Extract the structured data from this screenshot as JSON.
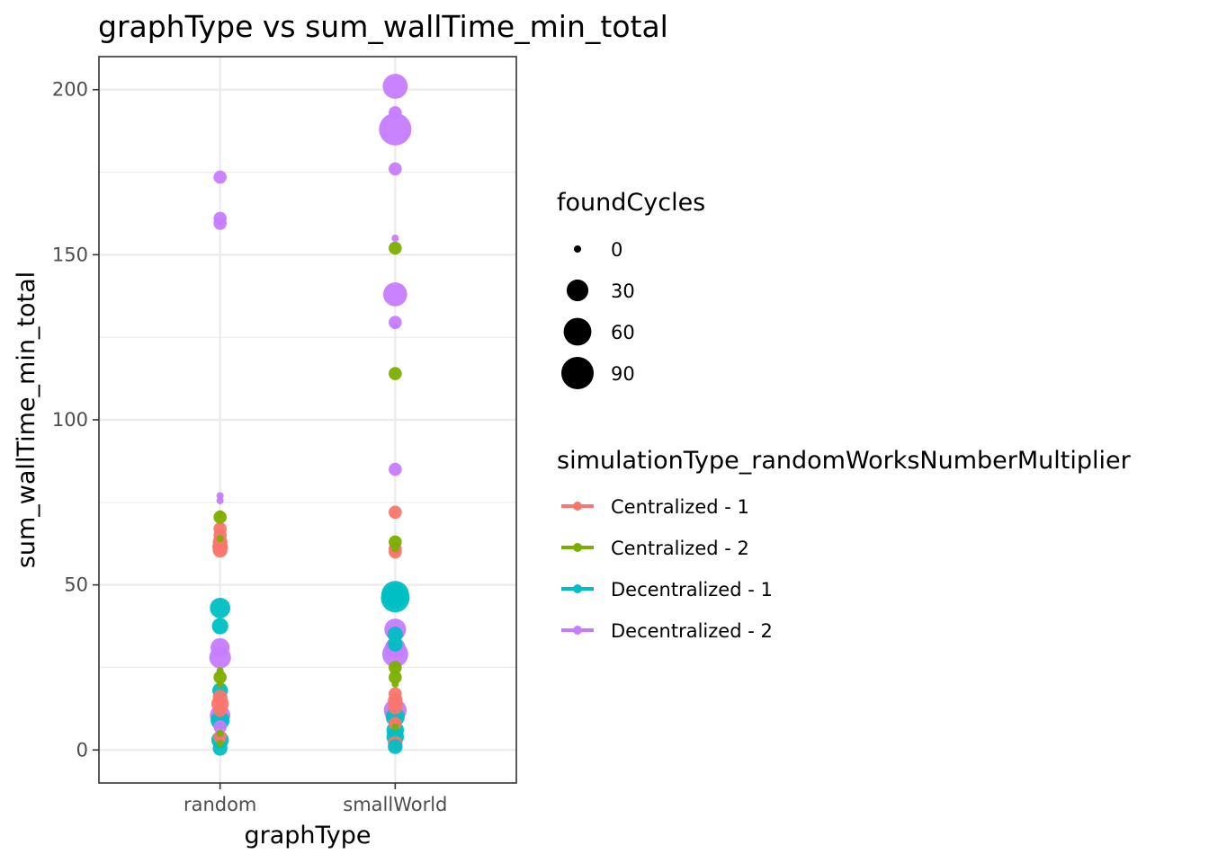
{
  "chart_data": {
    "type": "scatter",
    "title": "graphType  vs  sum_wallTime_min_total",
    "xlabel": "graphType",
    "ylabel": "sum_wallTime_min_total",
    "categories": [
      "random",
      "smallWorld"
    ],
    "ylim": [
      -10,
      210
    ],
    "yticks": [
      0,
      50,
      100,
      150,
      200
    ],
    "grid": true,
    "legend_position": "right",
    "size_legend": {
      "title": "foundCycles",
      "values": [
        0,
        30,
        60,
        90
      ],
      "labels": [
        "0",
        "30",
        "60",
        "90"
      ]
    },
    "color_legend": {
      "title": "simulationType_randomWorksNumberMultiplier"
    },
    "series": [
      {
        "name": "Centralized - 1",
        "color": "#F8766D",
        "points": [
          {
            "x": "random",
            "y": 67,
            "size": 5
          },
          {
            "x": "random",
            "y": 65,
            "size": 5
          },
          {
            "x": "random",
            "y": 63,
            "size": 8
          },
          {
            "x": "random",
            "y": 61.5,
            "size": 10
          },
          {
            "x": "random",
            "y": 60.5,
            "size": 8
          },
          {
            "x": "random",
            "y": 16,
            "size": 8
          },
          {
            "x": "random",
            "y": 14,
            "size": 15
          },
          {
            "x": "random",
            "y": 12,
            "size": 5
          },
          {
            "x": "random",
            "y": 4,
            "size": 5
          },
          {
            "x": "smallWorld",
            "y": 72,
            "size": 5
          },
          {
            "x": "smallWorld",
            "y": 61,
            "size": 5
          },
          {
            "x": "smallWorld",
            "y": 60,
            "size": 5
          },
          {
            "x": "smallWorld",
            "y": 17,
            "size": 5
          },
          {
            "x": "smallWorld",
            "y": 15,
            "size": 8
          },
          {
            "x": "smallWorld",
            "y": 13,
            "size": 8
          },
          {
            "x": "smallWorld",
            "y": 8,
            "size": 5
          },
          {
            "x": "smallWorld",
            "y": 2,
            "size": 8
          }
        ]
      },
      {
        "name": "Centralized - 2",
        "color": "#7CAE00",
        "points": [
          {
            "x": "random",
            "y": 71.5,
            "size": 0
          },
          {
            "x": "random",
            "y": 70.5,
            "size": 5
          },
          {
            "x": "random",
            "y": 64,
            "size": 0
          },
          {
            "x": "random",
            "y": 24,
            "size": 0
          },
          {
            "x": "random",
            "y": 22,
            "size": 5
          },
          {
            "x": "random",
            "y": 20,
            "size": 0
          },
          {
            "x": "random",
            "y": 5,
            "size": 0
          },
          {
            "x": "random",
            "y": 2,
            "size": 0
          },
          {
            "x": "smallWorld",
            "y": 152,
            "size": 5
          },
          {
            "x": "smallWorld",
            "y": 114,
            "size": 5
          },
          {
            "x": "smallWorld",
            "y": 63,
            "size": 5
          },
          {
            "x": "smallWorld",
            "y": 61,
            "size": 0
          },
          {
            "x": "smallWorld",
            "y": 25,
            "size": 5
          },
          {
            "x": "smallWorld",
            "y": 22,
            "size": 5
          },
          {
            "x": "smallWorld",
            "y": 20,
            "size": 0
          },
          {
            "x": "smallWorld",
            "y": 7,
            "size": 0
          }
        ]
      },
      {
        "name": "Decentralized - 1",
        "color": "#00BFC4",
        "points": [
          {
            "x": "random",
            "y": 43,
            "size": 25
          },
          {
            "x": "random",
            "y": 37.5,
            "size": 12
          },
          {
            "x": "random",
            "y": 18,
            "size": 10
          },
          {
            "x": "random",
            "y": 9,
            "size": 20
          },
          {
            "x": "random",
            "y": 3,
            "size": 15
          },
          {
            "x": "random",
            "y": 0.5,
            "size": 8
          },
          {
            "x": "smallWorld",
            "y": 47,
            "size": 60
          },
          {
            "x": "smallWorld",
            "y": 46,
            "size": 65
          },
          {
            "x": "smallWorld",
            "y": 35,
            "size": 10
          },
          {
            "x": "smallWorld",
            "y": 32,
            "size": 8
          },
          {
            "x": "smallWorld",
            "y": 10,
            "size": 20
          },
          {
            "x": "smallWorld",
            "y": 6,
            "size": 15
          },
          {
            "x": "smallWorld",
            "y": 4,
            "size": 15
          },
          {
            "x": "smallWorld",
            "y": 1,
            "size": 8
          }
        ]
      },
      {
        "name": "Decentralized - 2",
        "color": "#C77CFF",
        "points": [
          {
            "x": "random",
            "y": 173.5,
            "size": 5
          },
          {
            "x": "random",
            "y": 161,
            "size": 5
          },
          {
            "x": "random",
            "y": 159.5,
            "size": 5
          },
          {
            "x": "random",
            "y": 77,
            "size": 0
          },
          {
            "x": "random",
            "y": 75.5,
            "size": 0
          },
          {
            "x": "random",
            "y": 31,
            "size": 20
          },
          {
            "x": "random",
            "y": 28,
            "size": 30
          },
          {
            "x": "random",
            "y": 10.5,
            "size": 25
          },
          {
            "x": "random",
            "y": 7,
            "size": 5
          },
          {
            "x": "smallWorld",
            "y": 201,
            "size": 45
          },
          {
            "x": "smallWorld",
            "y": 193,
            "size": 5
          },
          {
            "x": "smallWorld",
            "y": 188,
            "size": 90
          },
          {
            "x": "smallWorld",
            "y": 176,
            "size": 5
          },
          {
            "x": "smallWorld",
            "y": 155,
            "size": 0
          },
          {
            "x": "smallWorld",
            "y": 138,
            "size": 40
          },
          {
            "x": "smallWorld",
            "y": 129.5,
            "size": 5
          },
          {
            "x": "smallWorld",
            "y": 128.5,
            "size": 0
          },
          {
            "x": "smallWorld",
            "y": 85,
            "size": 5
          },
          {
            "x": "smallWorld",
            "y": 36.5,
            "size": 30
          },
          {
            "x": "smallWorld",
            "y": 31,
            "size": 25
          },
          {
            "x": "smallWorld",
            "y": 29,
            "size": 50
          },
          {
            "x": "smallWorld",
            "y": 12,
            "size": 35
          }
        ]
      }
    ]
  }
}
